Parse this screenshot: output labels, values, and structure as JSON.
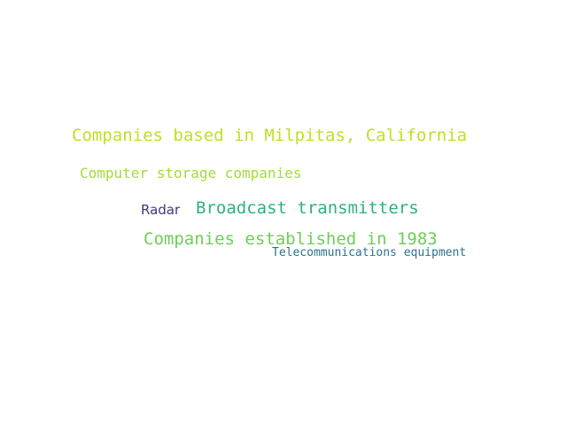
{
  "cloud": {
    "words": [
      {
        "text": "Companies based in Milpitas, California",
        "color": "#c2df23"
      },
      {
        "text": "Computer storage companies",
        "color": "#a5db36"
      },
      {
        "text": "Radar",
        "color": "#46337e"
      },
      {
        "text": "Broadcast transmitters",
        "color": "#2db27d"
      },
      {
        "text": "Companies established in 1983",
        "color": "#6ece58"
      },
      {
        "text": "Telecommunications equipment",
        "color": "#2c728e"
      }
    ]
  }
}
